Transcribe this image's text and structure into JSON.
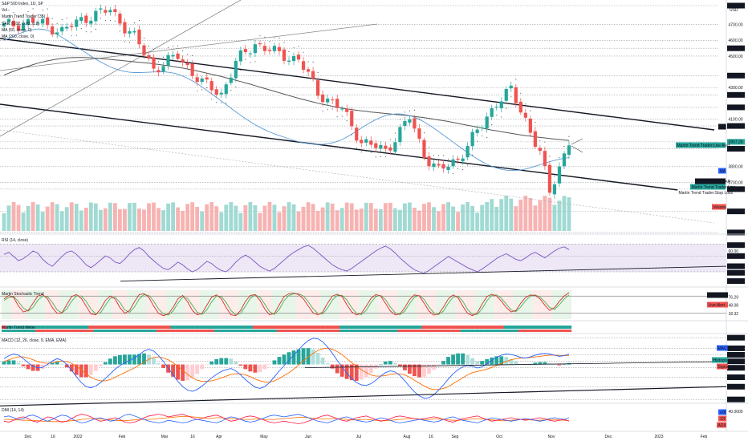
{
  "header": {
    "title": "S&P 500 Index, 1D, SP",
    "indicators": [
      "Vol",
      "Martin Trend Trader (35)",
      "SAR (0.02, 0.02, 0.2)",
      "MA (50, close, 0)",
      "MA (200, close, 0)"
    ],
    "currency": "USD"
  },
  "colors": {
    "up": "#26a69a",
    "down": "#ef5350",
    "volUp": "#8fd3cb",
    "volDown": "#f6a6a4",
    "ma50": "#5b9bd5",
    "ma200": "#555555",
    "rsiBand": "#ede7f6",
    "rsi": "#7e57c2",
    "stochFast": "#d32f2f",
    "stochSlow": "#4caf50",
    "macdLine": "#2962ff",
    "signal": "#ff6d00",
    "dmiPlus": "#2962ff",
    "dmiMinus": "#ff1744",
    "adx": "#ff6d00",
    "greenTag": "#26a69a",
    "redTag": "#ef5350",
    "darkTag": "#131722",
    "blueTag": "#2962ff"
  },
  "panes": {
    "rsi": {
      "label": "RSI (14, close)"
    },
    "stoch": {
      "label": "Martin Stochastic Trend"
    },
    "strip": {
      "label": "Martin Trend Meter"
    },
    "macd": {
      "label": "MACD (12, 26, close, 9, EMA, EMA)"
    },
    "dmi": {
      "label": "DMI (14, 14)"
    }
  },
  "chart_data": {
    "type": "candlestick",
    "symbol": "S&P 500 Index",
    "interval": "1D",
    "price_axis": [
      "4819.65",
      "4700.00",
      "4600.00",
      "4549.66",
      "4500.00",
      "4376.59",
      "4300.00",
      "4254.45",
      "4175.46",
      "4100.00",
      "4057.63",
      "3957.26",
      "3913.33",
      "3800.00",
      "3700.00",
      "3657.81",
      "3516.91",
      "3383.41"
    ],
    "price_range": [
      3383,
      4840
    ],
    "x_labels": [
      "Dec",
      "16",
      "2022",
      "Feb",
      "Mar",
      "16",
      "Apr",
      "May",
      "Jun",
      "Jul",
      "Aug",
      "16",
      "Sep",
      "Oct",
      "Nov",
      "Dec",
      "2023",
      "Feb"
    ],
    "chart_right_tags": {
      "ma": "MA",
      "last_price": "3957.26",
      "live_alert": "Martin Trend Trader:Live Alert",
      "ma2": "MA",
      "sar": "SAR ParabolicSAR",
      "trend_line": "Martin Trend Trader:Line",
      "stop_loss": "Martin Trend Trader:Stop Loss",
      "volume": "Volume"
    },
    "candles": [],
    "ma50": [
      4600,
      4612,
      4625,
      4640,
      4652,
      4662,
      4668,
      4672,
      4670,
      4663,
      4652,
      4637,
      4619,
      4600,
      4580,
      4560,
      4540,
      4520,
      4500,
      4481,
      4463,
      4447,
      4432,
      4420,
      4410,
      4403,
      4398,
      4396,
      4396,
      4397,
      4398,
      4400,
      4401,
      4401,
      4398,
      4393,
      4385,
      4374,
      4360,
      4343,
      4325,
      4305,
      4283,
      4261,
      4238,
      4215,
      4193,
      4170,
      4147,
      4125,
      4104,
      4084,
      4066,
      4049,
      4034,
      4020,
      4008,
      3997,
      3987,
      3977,
      3967,
      3958,
      3951,
      3946,
      3943,
      3941,
      3942,
      3945,
      3951,
      3960,
      3972,
      3988,
      4006,
      4025,
      4045,
      4064,
      4082,
      4098,
      4112,
      4123,
      4130,
      4134,
      4134,
      4130,
      4123,
      4113,
      4100,
      4083,
      4064,
      4044,
      4022,
      4000,
      3978,
      3955,
      3933,
      3911,
      3889,
      3868,
      3849,
      3831,
      3815,
      3802,
      3791,
      3783,
      3778,
      3776,
      3776,
      3779,
      3785,
      3793,
      3803,
      3812,
      3822,
      3832,
      3840,
      3847,
      3853,
      3857
    ],
    "ma200": [
      4380,
      4392,
      4404,
      4415,
      4426,
      4436,
      4446,
      4455,
      4463,
      4470,
      4476,
      4481,
      4485,
      4488,
      4490,
      4491,
      4491,
      4490,
      4489,
      4487,
      4485,
      4482,
      4479,
      4476,
      4473,
      4470,
      4467,
      4464,
      4461,
      4458,
      4455,
      4451,
      4447,
      4443,
      4439,
      4434,
      4429,
      4424,
      4418,
      4412,
      4406,
      4399,
      4392,
      4385,
      4378,
      4371,
      4363,
      4355,
      4347,
      4339,
      4330,
      4322,
      4313,
      4304,
      4295,
      4286,
      4277,
      4268,
      4259,
      4250,
      4242,
      4233,
      4225,
      4217,
      4210,
      4202,
      4195,
      4189,
      4182,
      4177,
      4171,
      4166,
      4162,
      4157,
      4153,
      4150,
      4146,
      4143,
      4140,
      4137,
      4134,
      4131,
      4128,
      4125,
      4122,
      4118,
      4114,
      4110,
      4106,
      4101,
      4096,
      4091,
      4086,
      4080,
      4074,
      4068,
      4062,
      4056,
      4050,
      4044,
      4038,
      4032,
      4027,
      4021,
      4016,
      4011,
      4006,
      4001,
      3997,
      3993,
      3989,
      3985,
      3982,
      3978,
      3975,
      3972,
      3969,
      3966
    ],
    "rsi": {
      "axis": [
        "68.42",
        "60.00",
        "52.68",
        "38.06",
        "28.63",
        "16.67"
      ],
      "range": [
        15,
        75
      ],
      "values": [
        55,
        58,
        52,
        46,
        49,
        54,
        60,
        57,
        48,
        42,
        38,
        45,
        52,
        58,
        60,
        55,
        48,
        40,
        36,
        41,
        47,
        53,
        50,
        44,
        42,
        48,
        56,
        62,
        65,
        60,
        52,
        46,
        40,
        35,
        33,
        38,
        44,
        40,
        34,
        30,
        33,
        39,
        45,
        42,
        36,
        32,
        30,
        36,
        44,
        50,
        54,
        50,
        44,
        38,
        34,
        31,
        35,
        41,
        47,
        53,
        58,
        62,
        66,
        68,
        64,
        58,
        52,
        46,
        40,
        36,
        33,
        31,
        35,
        40,
        45,
        50,
        55,
        60,
        64,
        67,
        63,
        57,
        50,
        44,
        38,
        33,
        30,
        28,
        32,
        37,
        42,
        47,
        52,
        48,
        44,
        40,
        36,
        33,
        30,
        34,
        39,
        44,
        49,
        53,
        56,
        52,
        48,
        46,
        50,
        55,
        58,
        54,
        50,
        55,
        60,
        64,
        66,
        62
      ]
    },
    "stochastic": {
      "axis": [
        "76.29",
        "48.08",
        "18.32"
      ],
      "range": [
        0,
        100
      ],
      "tags": [
        "Live Alert",
        "Live Alert"
      ],
      "fast": [
        70,
        82,
        75,
        45,
        25,
        30,
        55,
        80,
        85,
        70,
        40,
        20,
        22,
        50,
        78,
        85,
        72,
        45,
        18,
        15,
        35,
        65,
        80,
        70,
        40,
        20,
        30,
        60,
        85,
        88,
        75,
        45,
        20,
        12,
        18,
        40,
        70,
        82,
        60,
        30,
        15,
        20,
        48,
        76,
        84,
        70,
        40,
        15,
        12,
        30,
        62,
        82,
        85,
        65,
        35,
        15,
        20,
        50,
        78,
        88,
        90,
        85,
        70,
        45,
        22,
        15,
        25,
        55,
        80,
        86,
        78,
        50,
        25,
        15,
        20,
        45,
        72,
        85,
        80,
        55,
        28,
        15,
        18,
        40,
        68,
        84,
        80,
        55,
        28,
        14,
        18,
        42,
        70,
        84,
        75,
        45,
        20,
        12,
        22,
        52,
        78,
        86,
        80,
        62,
        40,
        25,
        30,
        55,
        75,
        84,
        82,
        70,
        48,
        30,
        40,
        62,
        80,
        92
      ],
      "slow": [
        65,
        75,
        78,
        60,
        38,
        28,
        40,
        65,
        80,
        78,
        58,
        32,
        22,
        35,
        62,
        80,
        80,
        62,
        35,
        18,
        22,
        48,
        72,
        76,
        58,
        32,
        24,
        42,
        70,
        85,
        82,
        62,
        35,
        18,
        14,
        28,
        55,
        76,
        72,
        48,
        24,
        16,
        32,
        60,
        80,
        78,
        58,
        30,
        14,
        20,
        45,
        72,
        84,
        76,
        52,
        26,
        16,
        34,
        64,
        82,
        88,
        88,
        80,
        60,
        36,
        20,
        18,
        38,
        66,
        82,
        82,
        66,
        40,
        20,
        16,
        30,
        58,
        78,
        82,
        68,
        42,
        22,
        16,
        28,
        54,
        76,
        82,
        68,
        42,
        22,
        16,
        28,
        55,
        76,
        80,
        62,
        34,
        16,
        16,
        36,
        64,
        82,
        84,
        72,
        52,
        32,
        26,
        42,
        64,
        80,
        84,
        76,
        60,
        40,
        34,
        50,
        70,
        84
      ]
    },
    "macd": {
      "axis": [
        "91.78",
        "55.35",
        "33.08",
        "10.73",
        "-11.45",
        "-43.84",
        "-76.22",
        "-120.00"
      ],
      "range": [
        -125,
        95
      ],
      "tags": [
        "MACD",
        "Histogram",
        "Signal"
      ],
      "macd": [
        20,
        30,
        36,
        32,
        20,
        6,
        -6,
        -12,
        -10,
        0,
        12,
        20,
        14,
        0,
        -20,
        -42,
        -62,
        -76,
        -80,
        -74,
        -62,
        -48,
        -32,
        -16,
        -4,
        6,
        14,
        22,
        34,
        46,
        52,
        46,
        30,
        10,
        -12,
        -36,
        -58,
        -76,
        -88,
        -92,
        -86,
        -74,
        -60,
        -46,
        -34,
        -24,
        -18,
        -14,
        -22,
        -36,
        -52,
        -66,
        -78,
        -82,
        -76,
        -62,
        -42,
        -22,
        -4,
        14,
        32,
        50,
        68,
        82,
        90,
        88,
        78,
        60,
        38,
        14,
        -8,
        -30,
        -48,
        -62,
        -70,
        -72,
        -66,
        -54,
        -40,
        -28,
        -22,
        -26,
        -38,
        -56,
        -76,
        -94,
        -108,
        -116,
        -114,
        -104,
        -88,
        -70,
        -50,
        -32,
        -18,
        -8,
        -4,
        -6,
        -12,
        -8,
        2,
        14,
        24,
        32,
        36,
        34,
        30,
        24,
        22,
        26,
        32,
        36,
        38,
        36,
        32,
        28,
        30,
        36
      ],
      "signal": [
        10,
        16,
        22,
        26,
        26,
        22,
        16,
        10,
        6,
        4,
        6,
        10,
        12,
        10,
        4,
        -6,
        -18,
        -32,
        -44,
        -52,
        -56,
        -56,
        -52,
        -44,
        -36,
        -28,
        -20,
        -12,
        -2,
        8,
        18,
        24,
        26,
        22,
        16,
        6,
        -6,
        -20,
        -34,
        -46,
        -54,
        -58,
        -58,
        -56,
        -52,
        -46,
        -40,
        -34,
        -32,
        -32,
        -36,
        -42,
        -50,
        -56,
        -60,
        -60,
        -56,
        -48,
        -38,
        -28,
        -16,
        -2,
        12,
        26,
        38,
        48,
        54,
        56,
        52,
        44,
        34,
        20,
        6,
        -6,
        -18,
        -28,
        -36,
        -40,
        -40,
        -38,
        -34,
        -32,
        -32,
        -36,
        -44,
        -54,
        -64,
        -74,
        -82,
        -86,
        -86,
        -82,
        -76,
        -66,
        -56,
        -46,
        -36,
        -28,
        -24,
        -20,
        -16,
        -10,
        -4,
        4,
        10,
        16,
        20,
        22,
        22,
        24,
        26,
        28,
        30,
        32,
        32,
        31,
        30,
        31
      ]
    },
    "dmi": {
      "axis": [
        "40.0000"
      ],
      "range": [
        0,
        50
      ],
      "tags": [
        "+DI",
        "-DI",
        "ADX"
      ],
      "plus": [
        28,
        30,
        26,
        22,
        24,
        30,
        32,
        28,
        22,
        18,
        22,
        28,
        32,
        30,
        24,
        18,
        14,
        16,
        20,
        24,
        26,
        22,
        18,
        20,
        26,
        32,
        34,
        30,
        26,
        22,
        18,
        16,
        14,
        16,
        20,
        18,
        16,
        14,
        16,
        20,
        22,
        20,
        18,
        16,
        14,
        18,
        24,
        28,
        26,
        22,
        18,
        16,
        18,
        22,
        26,
        30,
        32,
        30,
        28,
        30,
        32,
        34,
        30,
        26,
        22,
        18,
        16,
        14,
        18,
        22,
        26,
        28,
        24,
        20,
        18,
        16,
        18,
        22,
        26,
        24,
        20,
        16,
        14,
        16,
        18,
        20,
        22,
        20,
        18,
        16,
        18,
        22,
        26,
        28,
        24,
        20,
        18,
        16,
        14,
        18,
        22,
        26,
        24,
        22,
        20,
        18,
        20,
        22,
        24,
        22,
        20,
        18,
        20,
        24,
        26,
        24,
        22,
        26
      ],
      "minus": [
        18,
        16,
        20,
        26,
        28,
        24,
        18,
        16,
        22,
        28,
        26,
        20,
        16,
        18,
        24,
        30,
        34,
        32,
        28,
        22,
        18,
        20,
        24,
        26,
        22,
        16,
        14,
        16,
        20,
        26,
        30,
        32,
        34,
        32,
        28,
        30,
        32,
        34,
        30,
        26,
        22,
        24,
        28,
        30,
        32,
        28,
        22,
        18,
        20,
        24,
        28,
        30,
        28,
        24,
        20,
        16,
        14,
        16,
        18,
        16,
        14,
        12,
        14,
        18,
        22,
        26,
        30,
        32,
        28,
        24,
        20,
        18,
        22,
        26,
        28,
        30,
        26,
        22,
        18,
        20,
        24,
        28,
        30,
        28,
        26,
        24,
        22,
        24,
        26,
        28,
        26,
        22,
        18,
        16,
        20,
        24,
        26,
        28,
        30,
        26,
        22,
        18,
        20,
        22,
        24,
        26,
        24,
        22,
        20,
        22,
        24,
        26,
        24,
        20,
        18,
        20,
        22,
        18
      ],
      "adx": [
        22,
        22,
        21,
        21,
        20,
        20,
        19,
        19,
        18,
        18,
        17,
        17,
        17,
        18,
        19,
        20,
        22,
        23,
        24,
        24,
        23,
        22,
        21,
        20,
        19,
        19,
        20,
        21,
        22,
        22,
        22,
        23,
        24,
        25,
        26,
        27,
        28,
        29,
        29,
        28,
        27,
        26,
        25,
        25,
        26,
        26,
        25,
        24,
        23,
        22,
        22,
        22,
        23,
        23,
        22,
        22,
        22,
        23,
        24,
        25,
        26,
        27,
        27,
        26,
        25,
        24,
        23,
        23,
        24,
        24,
        23,
        22,
        21,
        21,
        22,
        22,
        21,
        20,
        19,
        19,
        20,
        21,
        22,
        23,
        24,
        24,
        23,
        22,
        22,
        23,
        23,
        22,
        21,
        20,
        20,
        21,
        22,
        23,
        24,
        23,
        22,
        21,
        20,
        19,
        19,
        20,
        21,
        22,
        22,
        21,
        20,
        20,
        21,
        22,
        22,
        21,
        20,
        19
      ]
    }
  }
}
